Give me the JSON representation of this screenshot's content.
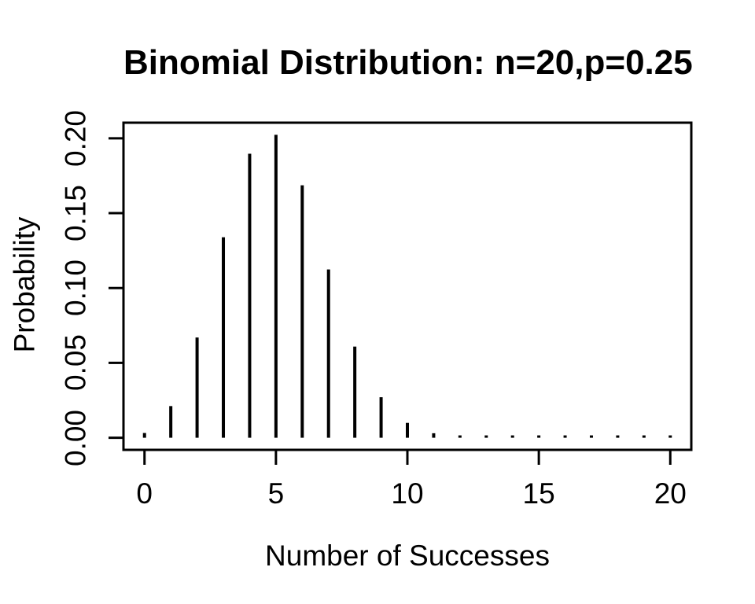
{
  "chart_data": {
    "type": "bar",
    "subtype": "stem",
    "title": "Binomial Distribution: n=20,p=0.25",
    "xlabel": "Number of Successes",
    "ylabel": "Probability",
    "x": [
      0,
      1,
      2,
      3,
      4,
      5,
      6,
      7,
      8,
      9,
      10,
      11,
      12,
      13,
      14,
      15,
      16,
      17,
      18,
      19,
      20
    ],
    "values": [
      0.003171,
      0.021142,
      0.066948,
      0.133897,
      0.189687,
      0.202333,
      0.168611,
      0.112407,
      0.060887,
      0.027061,
      0.009922,
      0.003007,
      0.000752,
      0.000154,
      2.6e-05,
      3e-06,
      4e-07,
      3e-08,
      2e-09,
      5e-11,
      1e-12
    ],
    "x_ticks": [
      {
        "v": 0,
        "label": "0"
      },
      {
        "v": 5,
        "label": "5"
      },
      {
        "v": 10,
        "label": "10"
      },
      {
        "v": 15,
        "label": "15"
      },
      {
        "v": 20,
        "label": "20"
      }
    ],
    "y_ticks": [
      {
        "v": 0.0,
        "label": "0.00"
      },
      {
        "v": 0.05,
        "label": "0.05"
      },
      {
        "v": 0.1,
        "label": "0.10"
      },
      {
        "v": 0.15,
        "label": "0.15"
      },
      {
        "v": 0.2,
        "label": "0.20"
      }
    ],
    "xlim": [
      -0.8,
      20.8
    ],
    "ylim": [
      -0.008093,
      0.210426
    ],
    "grid": false,
    "legend": "none",
    "colors": {
      "foreground": "#000000",
      "background": "#ffffff"
    }
  }
}
